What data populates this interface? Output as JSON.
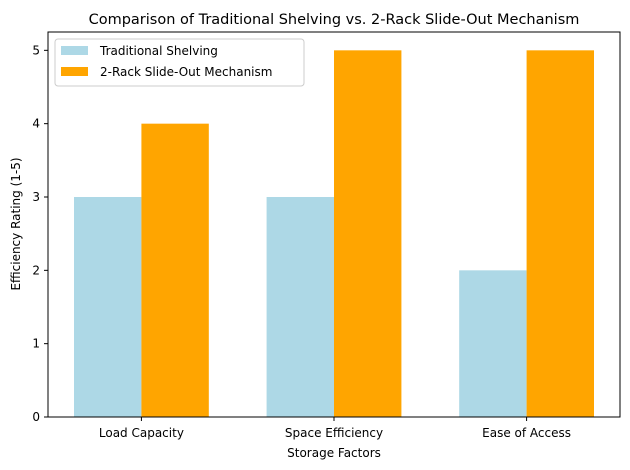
{
  "chart_data": {
    "type": "bar",
    "title": "Comparison of Traditional Shelving vs. 2-Rack Slide-Out Mechanism",
    "xlabel": "Storage Factors",
    "ylabel": "Efficiency Rating (1-5)",
    "categories": [
      "Load Capacity",
      "Space Efficiency",
      "Ease of Access"
    ],
    "series": [
      {
        "name": "Traditional Shelving",
        "values": [
          3,
          3,
          2
        ],
        "color": "#add8e6"
      },
      {
        "name": "2-Rack Slide-Out Mechanism",
        "values": [
          4,
          5,
          5
        ],
        "color": "#ffa500"
      }
    ],
    "ylim": [
      0,
      5.25
    ],
    "yticks": [
      0,
      1,
      2,
      3,
      4,
      5
    ],
    "grid": false,
    "legend": "top-left"
  }
}
